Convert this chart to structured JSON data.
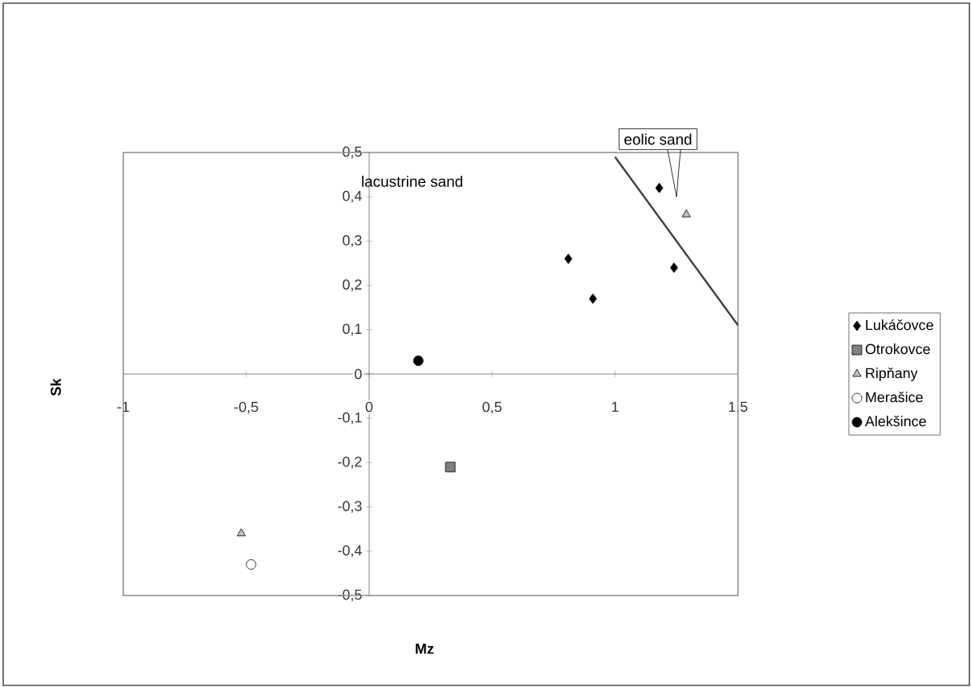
{
  "chart_data": {
    "type": "scatter",
    "xlabel": "Mz",
    "ylabel": "Sk",
    "xlim": [
      -1,
      1.5
    ],
    "ylim": [
      -0.5,
      0.5
    ],
    "xticks": [
      -1,
      {
        "value": -0.5,
        "label": "-0,5"
      },
      0,
      {
        "value": 0.5,
        "label": "0,5"
      },
      1,
      {
        "value": 1.5,
        "label": "1,5"
      }
    ],
    "yticks": [
      {
        "value": -0.5,
        "label": "-0,5"
      },
      {
        "value": -0.4,
        "label": "-0,4"
      },
      {
        "value": -0.3,
        "label": "-0,3"
      },
      {
        "value": -0.2,
        "label": "-0,2"
      },
      {
        "value": -0.1,
        "label": "-0,1"
      },
      0,
      {
        "value": 0.1,
        "label": "0,1"
      },
      {
        "value": 0.2,
        "label": "0,2"
      },
      {
        "value": 0.3,
        "label": "0,3"
      },
      {
        "value": 0.4,
        "label": "0,4"
      },
      {
        "value": 0.5,
        "label": "0,5"
      }
    ],
    "legend": "right",
    "grid": false,
    "annotations": [
      "lacustrine sand",
      "eolic sand"
    ],
    "series": [
      {
        "name": "Lukáčovce",
        "color": "#000000",
        "marker": "diamond",
        "x": [
          1.18,
          0.81,
          0.91,
          1.24
        ],
        "values": [
          0.42,
          0.26,
          0.17,
          0.24
        ]
      },
      {
        "name": "Otrokovce",
        "color": "#808080",
        "marker": "square",
        "x": [
          0.33
        ],
        "values": [
          -0.21
        ]
      },
      {
        "name": "Ripňany",
        "color": "#bfbfbf",
        "marker": "triangle",
        "x": [
          1.29,
          -0.52
        ],
        "values": [
          0.36,
          -0.36
        ]
      },
      {
        "name": "Merašice",
        "color": "#ffffff",
        "marker": "circle",
        "x": [
          -0.48
        ],
        "values": [
          -0.43
        ]
      },
      {
        "name": "Alekšince",
        "color": "#000000",
        "marker": "circle",
        "x": [
          0.2
        ],
        "values": [
          0.03
        ]
      },
      {
        "type": "line",
        "color": "#404040",
        "marker": "none",
        "x": [
          1.0,
          1.5
        ],
        "values": [
          0.49,
          0.11
        ]
      }
    ]
  }
}
